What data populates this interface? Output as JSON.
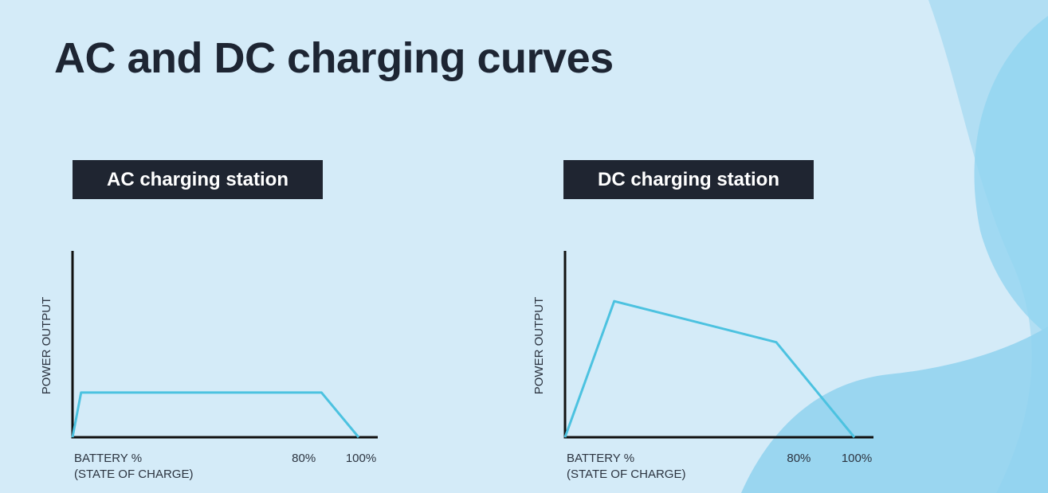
{
  "title": "AC and DC charging curves",
  "colors": {
    "background": "#d4ebf8",
    "curve": "#4cc2e0",
    "axis": "#111111",
    "label_bg": "#1f2531"
  },
  "chart_data": [
    {
      "type": "line",
      "title": "AC charging station",
      "ylabel": "POWER OUTPUT",
      "xlabel_lines": [
        "BATTERY %",
        "(STATE OF CHARGE)"
      ],
      "ticks": [
        {
          "x": 80,
          "label": "80%"
        },
        {
          "x": 100,
          "label": "100%"
        }
      ],
      "xlim": [
        0,
        100
      ],
      "ylim": [
        0,
        100
      ],
      "series": [
        {
          "x": [
            0,
            3,
            87,
            100
          ],
          "y": [
            0,
            24,
            24,
            0
          ]
        }
      ]
    },
    {
      "type": "line",
      "title": "DC charging station",
      "ylabel": "POWER OUTPUT",
      "xlabel_lines": [
        "BATTERY %",
        "(STATE OF CHARGE)"
      ],
      "ticks": [
        {
          "x": 80,
          "label": "80%"
        },
        {
          "x": 100,
          "label": "100%"
        }
      ],
      "xlim": [
        0,
        100
      ],
      "ylim": [
        0,
        100
      ],
      "series": [
        {
          "x": [
            0,
            17,
            73,
            100
          ],
          "y": [
            0,
            73,
            51,
            0
          ]
        }
      ]
    }
  ]
}
